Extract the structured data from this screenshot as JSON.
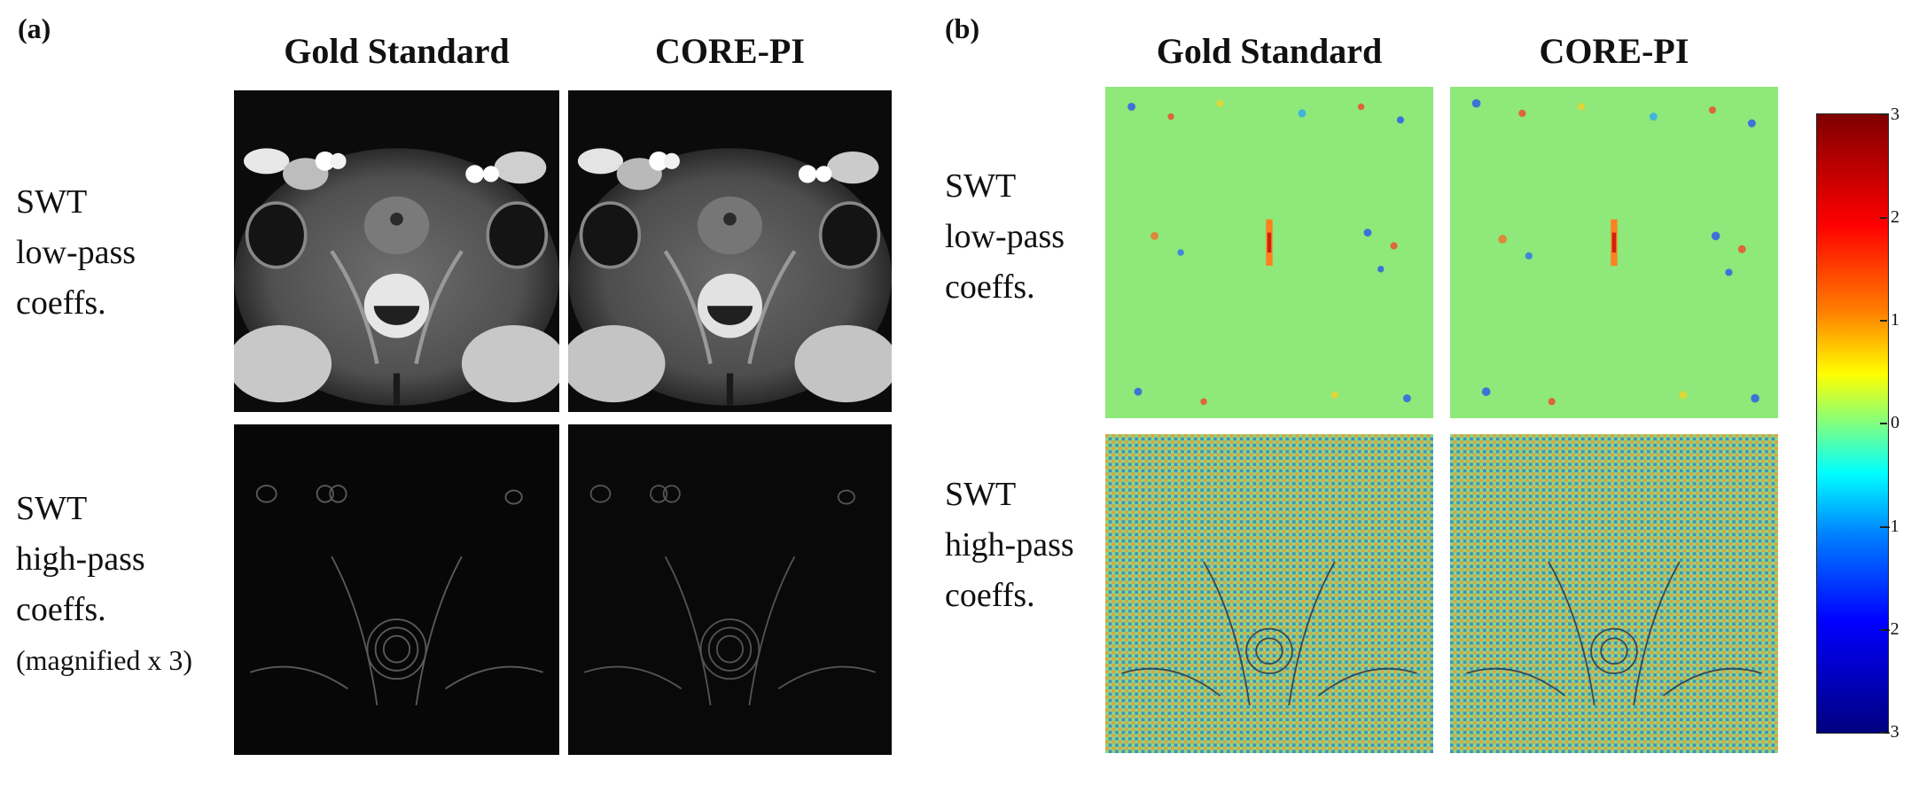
{
  "figure": {
    "panel_a": {
      "label": "(a)",
      "col_titles": [
        "Gold Standard",
        "CORE-PI"
      ],
      "rows": [
        {
          "lines": [
            "SWT",
            "low-pass",
            "coeffs."
          ],
          "note": ""
        },
        {
          "lines": [
            "SWT",
            "high-pass",
            "coeffs."
          ],
          "note": "(magnified x 3)"
        }
      ]
    },
    "panel_b": {
      "label": "(b)",
      "col_titles": [
        "Gold Standard",
        "CORE-PI"
      ],
      "rows": [
        {
          "lines": [
            "SWT",
            "low-pass",
            "coeffs."
          ]
        },
        {
          "lines": [
            "SWT",
            "high-pass",
            "coeffs."
          ]
        }
      ]
    },
    "colorbar": {
      "ticks": [
        "3",
        "2",
        "1",
        "0",
        "-1",
        "-2",
        "-3"
      ],
      "colormap": "jet",
      "range": [
        -3,
        3
      ]
    }
  }
}
